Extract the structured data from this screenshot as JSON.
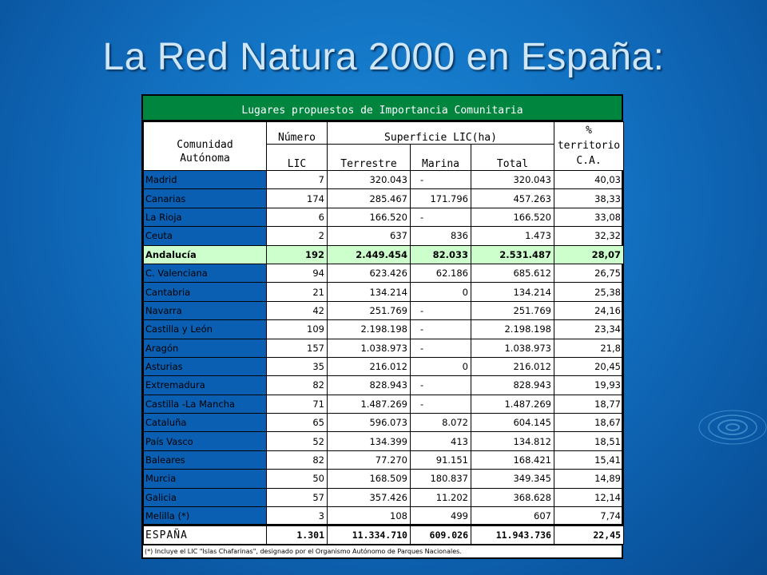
{
  "slide": {
    "title": "La Red Natura 2000 en España:"
  },
  "table": {
    "caption": "Lugares propuestos de Importancia Comunitaria",
    "headers": {
      "community": "Comunidad Autónoma",
      "numero": "Número",
      "superficie": "Superficie LIC(ha)",
      "percent": "%",
      "territorio": "territorio",
      "ca": "C.A.",
      "lic": "LIC",
      "terrestre": "Terrestre",
      "marina": "Marina",
      "total": "Total"
    },
    "rows": [
      {
        "name": "Madrid",
        "lic": "7",
        "terrestre": "320.043",
        "marina": "-",
        "total": "320.043",
        "pct": "40,03"
      },
      {
        "name": "Canarias",
        "lic": "174",
        "terrestre": "285.467",
        "marina": "171.796",
        "total": "457.263",
        "pct": "38,33"
      },
      {
        "name": "La Rioja",
        "lic": "6",
        "terrestre": "166.520",
        "marina": "-",
        "total": "166.520",
        "pct": "33,08"
      },
      {
        "name": "Ceuta",
        "lic": "2",
        "terrestre": "637",
        "marina": "836",
        "total": "1.473",
        "pct": "32,32"
      },
      {
        "name": "Andalucía",
        "lic": "192",
        "terrestre": "2.449.454",
        "marina": "82.033",
        "total": "2.531.487",
        "pct": "28,07",
        "highlight": true
      },
      {
        "name": "C. Valenciana",
        "lic": "94",
        "terrestre": "623.426",
        "marina": "62.186",
        "total": "685.612",
        "pct": "26,75"
      },
      {
        "name": "Cantabria",
        "lic": "21",
        "terrestre": "134.214",
        "marina": "0",
        "total": "134.214",
        "pct": "25,38"
      },
      {
        "name": "Navarra",
        "lic": "42",
        "terrestre": "251.769",
        "marina": "-",
        "total": "251.769",
        "pct": "24,16"
      },
      {
        "name": "Castilla y León",
        "lic": "109",
        "terrestre": "2.198.198",
        "marina": "-",
        "total": "2.198.198",
        "pct": "23,34"
      },
      {
        "name": "Aragón",
        "lic": "157",
        "terrestre": "1.038.973",
        "marina": "-",
        "total": "1.038.973",
        "pct": "21,8"
      },
      {
        "name": "Asturias",
        "lic": "35",
        "terrestre": "216.012",
        "marina": "0",
        "total": "216.012",
        "pct": "20,45"
      },
      {
        "name": "Extremadura",
        "lic": "82",
        "terrestre": "828.943",
        "marina": "-",
        "total": "828.943",
        "pct": "19,93"
      },
      {
        "name": "Castilla -La Mancha",
        "lic": "71",
        "terrestre": "1.487.269",
        "marina": "-",
        "total": "1.487.269",
        "pct": "18,77"
      },
      {
        "name": "Cataluña",
        "lic": "65",
        "terrestre": "596.073",
        "marina": "8.072",
        "total": "604.145",
        "pct": "18,67"
      },
      {
        "name": "País Vasco",
        "lic": "52",
        "terrestre": "134.399",
        "marina": "413",
        "total": "134.812",
        "pct": "18,51"
      },
      {
        "name": "Baleares",
        "lic": "82",
        "terrestre": "77.270",
        "marina": "91.151",
        "total": "168.421",
        "pct": "15,41"
      },
      {
        "name": "Murcia",
        "lic": "50",
        "terrestre": "168.509",
        "marina": "180.837",
        "total": "349.345",
        "pct": "14,89"
      },
      {
        "name": "Galicia",
        "lic": "57",
        "terrestre": "357.426",
        "marina": "11.202",
        "total": "368.628",
        "pct": "12,14"
      },
      {
        "name": "Melilla (*)",
        "lic": "3",
        "terrestre": "108",
        "marina": "499",
        "total": "607",
        "pct": "7,74"
      }
    ],
    "totals": {
      "name": "ESPAÑA",
      "lic": "1.301",
      "terrestre": "11.334.710",
      "marina": "609.026",
      "total": "11.943.736",
      "pct": "22,45"
    },
    "footnote": "(*) Incluye el LIC \"Islas Chafarinas\", designado por el Organismo Autónomo de Parques Nacionales."
  },
  "colors": {
    "caption_bg": "#00853e",
    "highlight_bg": "#ccffcc",
    "name_bg": "#0a5fb3"
  },
  "icons": [
    "ripple-decoration-icon"
  ]
}
